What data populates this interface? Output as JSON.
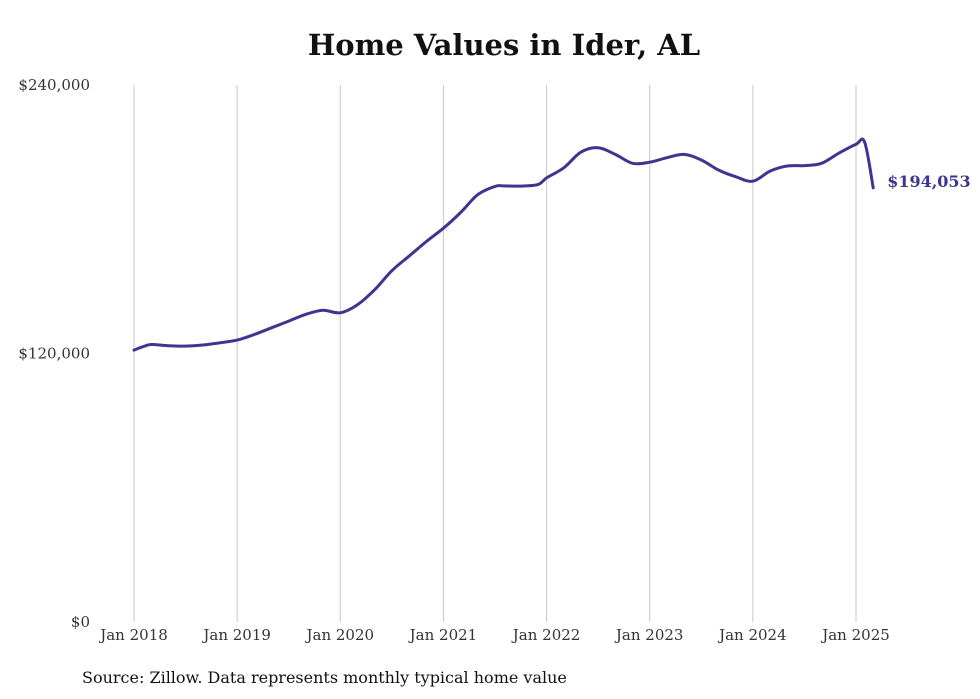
{
  "chart_data": {
    "type": "line",
    "title": "Home Values in Ider, AL",
    "xlabel": "",
    "ylabel": "",
    "ylim": [
      0,
      240000
    ],
    "xlim": [
      "2018-01",
      "2025-03"
    ],
    "grid": "vertical lines at each January",
    "y_ticks": [
      "$240,000",
      "$120,000",
      "$0"
    ],
    "x_ticks": [
      "Jan 2018",
      "Jan 2019",
      "Jan 2020",
      "Jan 2021",
      "Jan 2022",
      "Jan 2023",
      "Jan 2024",
      "Jan 2025"
    ],
    "end_label": "$194,053",
    "line_color": "#3d3590",
    "series": [
      {
        "x": [
          "2018-01",
          "2018-02",
          "2018-03",
          "2018-05",
          "2018-07",
          "2018-09",
          "2018-11",
          "2019-01",
          "2019-03",
          "2019-05",
          "2019-07",
          "2019-09",
          "2019-11",
          "2020-01",
          "2020-03",
          "2020-05",
          "2020-07",
          "2020-09",
          "2020-11",
          "2021-01",
          "2021-03",
          "2021-05",
          "2021-07",
          "2021-08",
          "2021-10",
          "2021-12",
          "2022-01",
          "2022-03",
          "2022-05",
          "2022-07",
          "2022-09",
          "2022-11",
          "2023-01",
          "2023-03",
          "2023-05",
          "2023-07",
          "2023-09",
          "2023-11",
          "2024-01",
          "2024-03",
          "2024-05",
          "2024-07",
          "2024-09",
          "2024-11",
          "2025-01",
          "2025-02",
          "2025-03"
        ],
        "values": [
          121500,
          123000,
          124000,
          123500,
          123300,
          123800,
          124800,
          126000,
          128500,
          131500,
          134500,
          137500,
          139300,
          138200,
          141800,
          148500,
          157000,
          163500,
          170000,
          176000,
          183000,
          191000,
          194700,
          194900,
          194800,
          195500,
          198500,
          203000,
          210000,
          212000,
          209000,
          205000,
          205500,
          207500,
          209000,
          206500,
          202000,
          199000,
          197000,
          201500,
          203800,
          204000,
          205000,
          209500,
          213500,
          214500,
          194053
        ]
      }
    ],
    "source": "Source: Zillow. Data represents monthly typical home value"
  }
}
